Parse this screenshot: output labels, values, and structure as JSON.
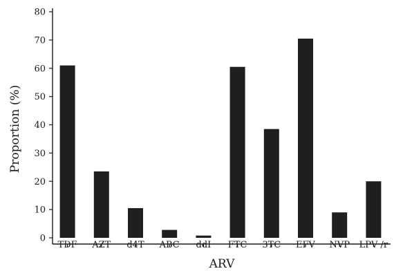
{
  "chart_data": {
    "type": "bar",
    "categories": [
      "TDF",
      "AZT",
      "d4T",
      "ABC",
      "ddI",
      "FTC",
      "3TC",
      "EFV",
      "NVP",
      "LPV /r"
    ],
    "values": [
      61,
      23.5,
      10.5,
      2.8,
      0.8,
      60.5,
      38.5,
      70.5,
      9,
      20
    ],
    "xlabel": "ARV",
    "ylabel": "Proportion (%)",
    "ylim": [
      0,
      80
    ],
    "yticks": [
      0,
      10,
      20,
      30,
      40,
      50,
      60,
      70,
      80
    ],
    "grid": false,
    "bar_color": "#1f1f1f"
  }
}
